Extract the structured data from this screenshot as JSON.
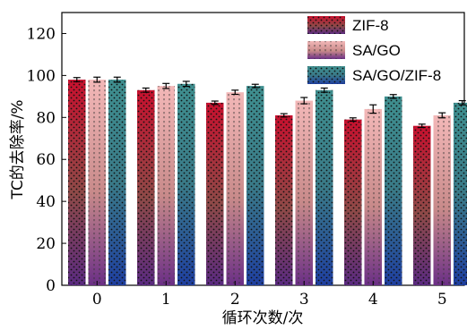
{
  "chart_data": {
    "type": "bar",
    "xlabel": "循环次数/次",
    "ylabel": "TC的去除率/%",
    "ylim": [
      0,
      130
    ],
    "yticks": [
      0,
      20,
      40,
      60,
      80,
      100,
      120
    ],
    "categories": [
      "0",
      "1",
      "2",
      "3",
      "4",
      "5"
    ],
    "series": [
      {
        "name": "ZIF-8",
        "values": [
          98,
          93,
          87,
          81,
          79,
          76
        ],
        "errors": [
          1.0,
          1.0,
          0.8,
          0.8,
          0.8,
          0.8
        ],
        "pattern": "dots",
        "colors": {
          "top": "#c8102e",
          "bottom": "#5a2a80"
        }
      },
      {
        "name": "SA/GO",
        "values": [
          98,
          95,
          92,
          88,
          84,
          81
        ],
        "errors": [
          1.2,
          1.2,
          1.0,
          1.5,
          2.0,
          1.2
        ],
        "pattern": "dotted-lines",
        "colors": {
          "top": "#f3b8b8",
          "bottom": "#6b2f86"
        }
      },
      {
        "name": "SA/GO/ZIF-8",
        "values": [
          98,
          96,
          95,
          93,
          90,
          87
        ],
        "errors": [
          1.2,
          1.2,
          0.8,
          1.0,
          0.9,
          1.0
        ],
        "pattern": "dots",
        "colors": {
          "top": "#3f8f8f",
          "bottom": "#1f3fa0"
        }
      }
    ],
    "legend_position": "top-right",
    "grid": false
  }
}
